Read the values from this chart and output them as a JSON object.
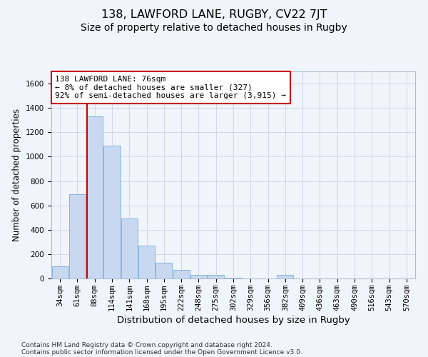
{
  "title1": "138, LAWFORD LANE, RUGBY, CV22 7JT",
  "title2": "Size of property relative to detached houses in Rugby",
  "xlabel": "Distribution of detached houses by size in Rugby",
  "ylabel": "Number of detached properties",
  "bar_color": "#c8d8f0",
  "bar_edgecolor": "#7aaedd",
  "grid_color": "#d0d8e8",
  "background_color": "#f0f4fb",
  "annotation_box_color": "#ffffff",
  "annotation_box_edge": "#cc0000",
  "red_line_color": "#cc0000",
  "categories": [
    "34sqm",
    "61sqm",
    "88sqm",
    "114sqm",
    "141sqm",
    "168sqm",
    "195sqm",
    "222sqm",
    "248sqm",
    "275sqm",
    "302sqm",
    "329sqm",
    "356sqm",
    "382sqm",
    "409sqm",
    "436sqm",
    "463sqm",
    "490sqm",
    "516sqm",
    "543sqm",
    "570sqm"
  ],
  "values": [
    100,
    690,
    1330,
    1090,
    490,
    270,
    130,
    70,
    30,
    30,
    5,
    0,
    0,
    30,
    0,
    0,
    0,
    0,
    0,
    0,
    0
  ],
  "ylim": [
    0,
    1700
  ],
  "yticks": [
    0,
    200,
    400,
    600,
    800,
    1000,
    1200,
    1400,
    1600
  ],
  "annotation_text": "138 LAWFORD LANE: 76sqm\n← 8% of detached houses are smaller (327)\n92% of semi-detached houses are larger (3,915) →",
  "footnote1": "Contains HM Land Registry data © Crown copyright and database right 2024.",
  "footnote2": "Contains public sector information licensed under the Open Government Licence v3.0.",
  "title1_fontsize": 11.5,
  "title2_fontsize": 10,
  "xlabel_fontsize": 9.5,
  "ylabel_fontsize": 8.5,
  "tick_fontsize": 7.5,
  "annotation_fontsize": 8,
  "footnote_fontsize": 6.5
}
